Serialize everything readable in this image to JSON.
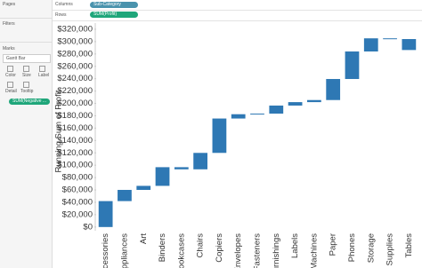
{
  "ui": {
    "pages": "Pages",
    "filters": "Filters",
    "marks": "Marks",
    "mark_type": "Gantt Bar",
    "mark_buttons": [
      "Color",
      "Size",
      "Label",
      "Detail",
      "Tooltip"
    ],
    "marks_pill": "SUM(Negative ...",
    "columns_label": "Columns",
    "columns_pill": "Sub-Category",
    "rows_label": "Rows",
    "rows_pill": "SUM(Profit)"
  },
  "chart_data": {
    "type": "waterfall",
    "y_label": "Running Sum of Profit",
    "categories": [
      "Accessories",
      "Appliances",
      "Art",
      "Binders",
      "Bookcases",
      "Chairs",
      "Copiers",
      "Envelopes",
      "Fasteners",
      "Furnishings",
      "Labels",
      "Machines",
      "Paper",
      "Phones",
      "Storage",
      "Supplies",
      "Tables"
    ],
    "values": [
      41937,
      18138,
      6528,
      30222,
      -3473,
      26590,
      55618,
      6964,
      950,
      13059,
      5546,
      3385,
      34054,
      44516,
      21279,
      -1189,
      -17725
    ],
    "color": "#2e78b4",
    "ylim": [
      -6000,
      330000
    ],
    "yticks": [
      {
        "value": 0,
        "label": "$0"
      },
      {
        "value": 20000,
        "label": "$20,000"
      },
      {
        "value": 40000,
        "label": "$40,000"
      },
      {
        "value": 60000,
        "label": "$60,000"
      },
      {
        "value": 80000,
        "label": "$80,000"
      },
      {
        "value": 100000,
        "label": "$100,000"
      },
      {
        "value": 120000,
        "label": "$120,000"
      },
      {
        "value": 140000,
        "label": "$140,000"
      },
      {
        "value": 160000,
        "label": "$160,000"
      },
      {
        "value": 180000,
        "label": "$180,000"
      },
      {
        "value": 200000,
        "label": "$200,000"
      },
      {
        "value": 220000,
        "label": "$220,000"
      },
      {
        "value": 240000,
        "label": "$240,000"
      },
      {
        "value": 260000,
        "label": "$260,000"
      },
      {
        "value": 280000,
        "label": "$280,000"
      },
      {
        "value": 300000,
        "label": "$300,000"
      },
      {
        "value": 320000,
        "label": "$320,000"
      }
    ],
    "grid": false
  }
}
